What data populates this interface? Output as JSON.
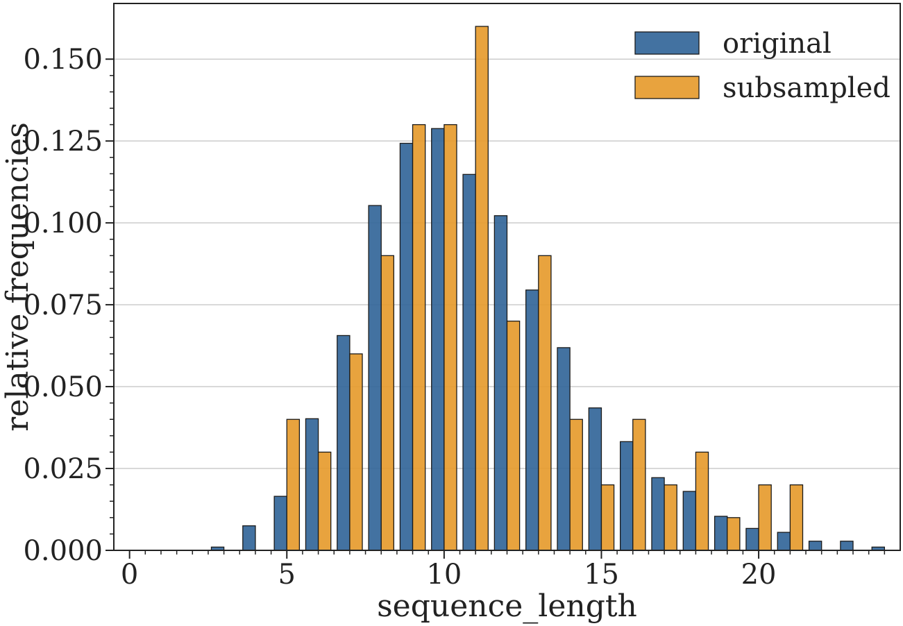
{
  "chart_data": {
    "type": "bar",
    "xlabel": "sequence_length",
    "ylabel": "relative frequencies",
    "xlim": [
      -0.5,
      24.5
    ],
    "ylim": [
      0,
      0.167
    ],
    "xticks": [
      "0",
      "5",
      "10",
      "15",
      "20"
    ],
    "xtick_values": [
      0,
      5,
      10,
      15,
      20
    ],
    "yticks": [
      "0.000",
      "0.025",
      "0.050",
      "0.075",
      "0.100",
      "0.125",
      "0.150"
    ],
    "ytick_values": [
      0,
      0.025,
      0.05,
      0.075,
      0.1,
      0.125,
      0.15
    ],
    "grid": "horizontal",
    "legend_position": "top-right",
    "x": [
      0,
      1,
      2,
      3,
      4,
      5,
      6,
      7,
      8,
      9,
      10,
      11,
      12,
      13,
      14,
      15,
      16,
      17,
      18,
      19,
      20,
      21,
      22,
      23,
      24
    ],
    "series": [
      {
        "name": "original",
        "color": "#336699",
        "values": [
          0,
          0,
          0,
          0.001,
          0.0075,
          0.0165,
          0.0402,
          0.0656,
          0.1053,
          0.1243,
          0.1288,
          0.1148,
          0.1022,
          0.0795,
          0.0619,
          0.0435,
          0.0332,
          0.0222,
          0.018,
          0.0104,
          0.0067,
          0.0055,
          0.0028,
          0.0028,
          0.001
        ]
      },
      {
        "name": "subsampled",
        "color": "#E69B2E",
        "values": [
          0,
          0,
          0,
          0,
          0,
          0.04,
          0.03,
          0.06,
          0.09,
          0.13,
          0.13,
          0.16,
          0.07,
          0.09,
          0.04,
          0.02,
          0.04,
          0.02,
          0.03,
          0.01,
          0.02,
          0.02,
          0,
          0,
          0
        ]
      }
    ]
  }
}
